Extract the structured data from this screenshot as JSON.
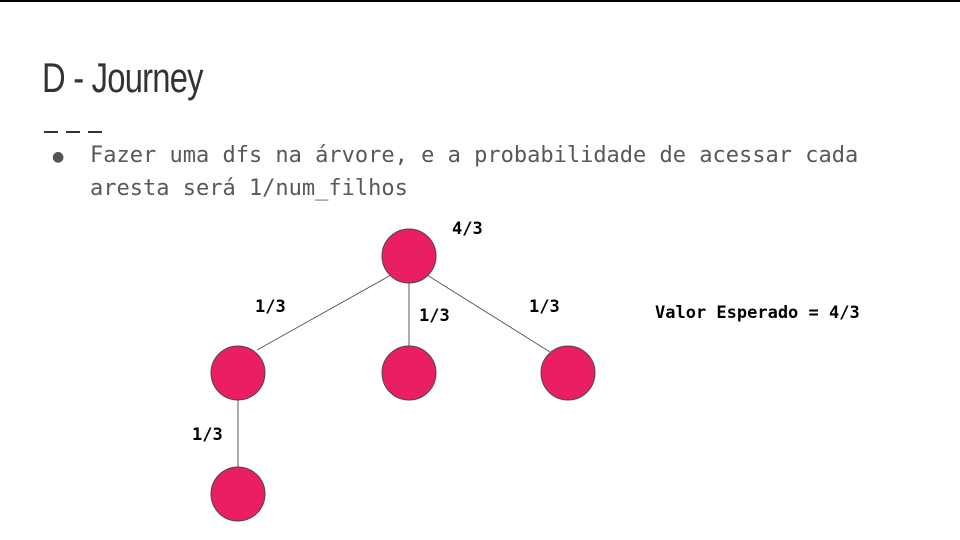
{
  "slide": {
    "title": "D - Journey",
    "bullet": "Fazer uma dfs na árvore, e a probabilidade de acessar cada aresta será 1/num_filhos",
    "bullet_marker": "●"
  },
  "diagram": {
    "root_label": "4/3",
    "edge_labels": [
      "1/3",
      "1/3",
      "1/3",
      "1/3"
    ],
    "expected_value": "Valor Esperado = 4/3",
    "node_color": "#e91e63"
  }
}
